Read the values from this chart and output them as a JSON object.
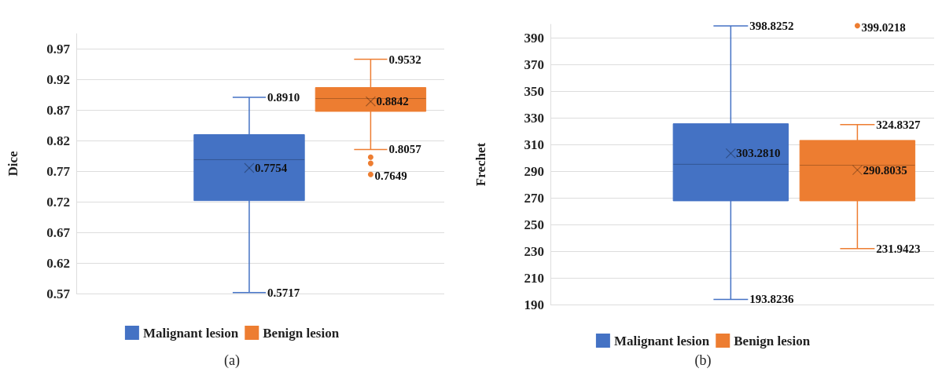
{
  "chart_data": [
    {
      "type": "box",
      "ylabel": "Dice",
      "categories": [
        null
      ],
      "ylim": [
        0.57,
        0.995
      ],
      "yticks": [
        0.57,
        0.62,
        0.67,
        0.72,
        0.77,
        0.82,
        0.87,
        0.92,
        0.97
      ],
      "grid": "y",
      "legend": "bottom",
      "series": [
        {
          "name": "Malignant lesion",
          "color": "#4472c4",
          "boxes": [
            {
              "low": 0.5717,
              "q1": 0.722,
              "median": 0.789,
              "q3": 0.83,
              "high": 0.891,
              "mean": 0.7754
            }
          ]
        },
        {
          "name": "Benign lesion",
          "color": "#ed7d31",
          "boxes": [
            {
              "low": 0.8057,
              "q1": 0.868,
              "median": 0.889,
              "q3": 0.907,
              "high": 0.9532,
              "mean": 0.8842,
              "outliers": [
                0.7649,
                0.783,
                0.793
              ]
            }
          ]
        }
      ],
      "annotations": [
        "0.8910",
        "0.7754",
        "0.5717",
        "0.9532",
        "0.8842",
        "0.8057",
        "0.7649",
        "(a)"
      ]
    },
    {
      "type": "box",
      "ylabel": "Frechet",
      "categories": [
        null
      ],
      "ylim": [
        190,
        400
      ],
      "yticks": [
        190,
        210,
        230,
        250,
        270,
        290,
        310,
        330,
        350,
        370,
        390
      ],
      "grid": "y",
      "legend": "bottom",
      "series": [
        {
          "name": "Malignant lesion",
          "color": "#4472c4",
          "boxes": [
            {
              "low": 193.8236,
              "q1": 267.7,
              "median": 295.1,
              "q3": 325.5,
              "high": 398.8252,
              "mean": 303.281
            }
          ]
        },
        {
          "name": "Benign lesion",
          "color": "#ed7d31",
          "boxes": [
            {
              "low": 231.9423,
              "q1": 267.7,
              "median": 294.4,
              "q3": 313,
              "high": 324.8327,
              "mean": 290.8035,
              "outliers": [
                399.0218
              ]
            }
          ]
        }
      ],
      "annotations": [
        "398.8252",
        "303.2810",
        "193.8236",
        "399.0218",
        "324.8327",
        "290.8035",
        "231.9423",
        "(b)"
      ]
    }
  ]
}
